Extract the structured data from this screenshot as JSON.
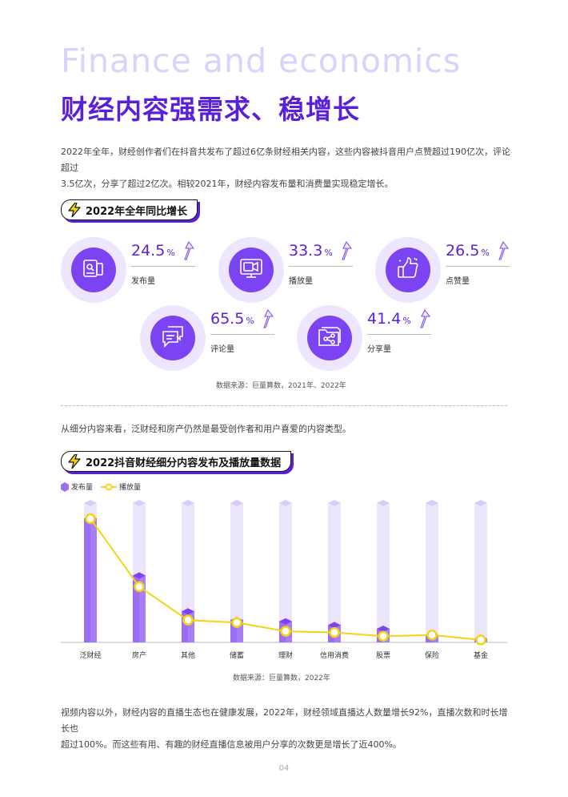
{
  "header": {
    "english_title": "Finance and economics",
    "chinese_title": "财经内容强需求、稳增长"
  },
  "intro": {
    "line1": "2022年全年，财经创作者们在抖音共发布了超过6亿条财经相关内容，这些内容被抖音用户点赞超过190亿次，评论超过",
    "line2": "3.5亿次，分享了超过2亿次。相较2021年，财经内容发布量和消费量实现稳定增长。"
  },
  "section1": {
    "tag": "2022年全年同比增长",
    "stats": [
      {
        "value": "24.5",
        "unit": "%",
        "label": "发布量",
        "icon": "document-publish-icon"
      },
      {
        "value": "33.3",
        "unit": "%",
        "label": "播放量",
        "icon": "video-play-icon"
      },
      {
        "value": "26.5",
        "unit": "%",
        "label": "点赞量",
        "icon": "thumbs-up-icon"
      },
      {
        "value": "65.5",
        "unit": "%",
        "label": "评论量",
        "icon": "comment-bubbles-icon"
      },
      {
        "value": "41.4",
        "unit": "%",
        "label": "分享量",
        "icon": "share-folder-icon"
      }
    ],
    "source": "数据来源：巨量算数，2021年、2022年"
  },
  "section2": {
    "intro": "从细分内容来看，泛财经和房产仍然是最受创作者和用户喜爱的内容类型。",
    "tag": "2022抖音财经细分内容发布及播放量数据",
    "source": "数据来源：巨量算数，2022年"
  },
  "chart_data": {
    "type": "bar",
    "categories": [
      "泛财经",
      "房产",
      "其他",
      "储蓄",
      "理财",
      "信用消费",
      "股票",
      "保险",
      "基金"
    ],
    "series": [
      {
        "name": "发布量",
        "values": [
          100,
          54,
          25,
          18,
          17,
          14,
          11,
          6,
          3
        ],
        "kind": "bar",
        "color": "#9b6cf6"
      },
      {
        "name": "播放量",
        "values": [
          100,
          45,
          18,
          16,
          9,
          8,
          5,
          6,
          2
        ],
        "kind": "line",
        "color": "#f5d312"
      }
    ],
    "ylim": [
      0,
      110
    ],
    "grid": false,
    "legend": "top-left"
  },
  "closing": {
    "line1": "视频内容以外，财经内容的直播生态也在健康发展，2022年，财经领域直播达人数量增长92%，直播次数和时长增长也",
    "line2": "超过100%。而这些有用、有趣的财经直播信息被用户分享的次数更是增长了近400%。"
  },
  "page_number": "04",
  "colors": {
    "accent": "#5a1fd9",
    "light": "#ede6fe",
    "line": "#f5d312"
  }
}
